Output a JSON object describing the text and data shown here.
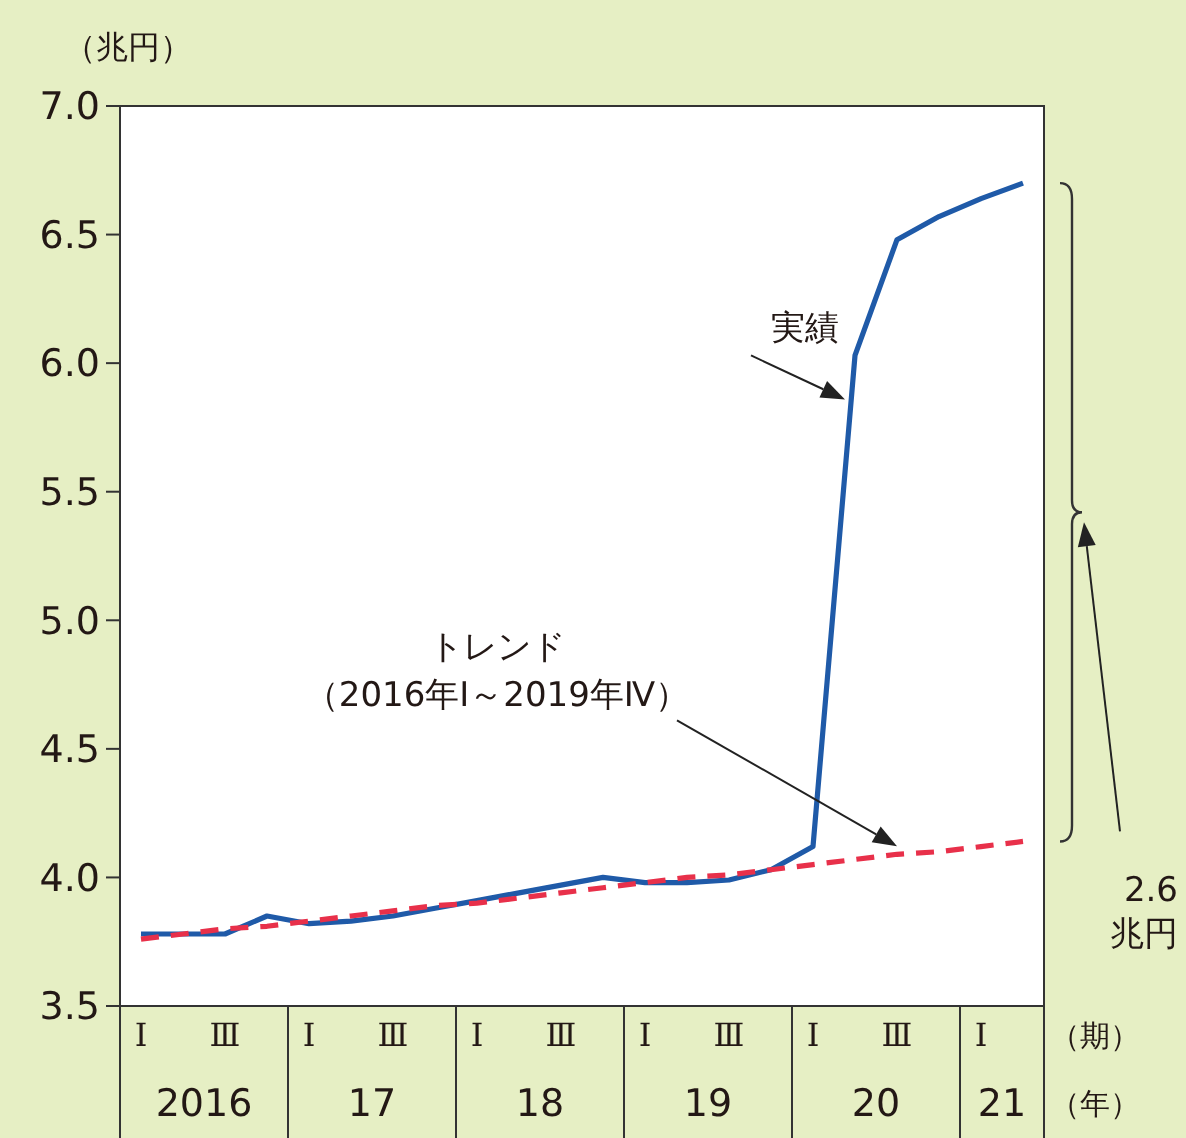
{
  "chart_data": {
    "type": "line",
    "ylabel": "（兆円）",
    "xlabel": "（期）",
    "categories": [
      "Ⅰ",
      null,
      "Ⅲ",
      null,
      "Ⅰ",
      null,
      "Ⅲ",
      null,
      "Ⅰ",
      null,
      "Ⅲ",
      null,
      "Ⅰ",
      null,
      "Ⅲ",
      null,
      "Ⅰ",
      null,
      "Ⅲ",
      null,
      "Ⅰ",
      null
    ],
    "ylim": [
      3.5,
      7.0
    ],
    "yticks": [
      {
        "value": 3.5,
        "label": "3.5"
      },
      {
        "value": 4.0,
        "label": "4.0"
      },
      {
        "value": 4.5,
        "label": "4.5"
      },
      {
        "value": 5.0,
        "label": "5.0"
      },
      {
        "value": 5.5,
        "label": "5.5"
      },
      {
        "value": 6.0,
        "label": "6.0"
      },
      {
        "value": 6.5,
        "label": "6.5"
      },
      {
        "value": 7.0,
        "label": "7.0"
      }
    ],
    "series": [
      {
        "name": "実績",
        "color": "#1f5aa8",
        "line_style": "solid",
        "values": [
          3.78,
          3.78,
          3.78,
          3.85,
          3.82,
          3.83,
          3.85,
          3.88,
          3.91,
          3.94,
          3.97,
          4.0,
          3.98,
          3.98,
          3.99,
          4.03,
          4.12,
          6.03,
          6.48,
          6.57,
          6.64,
          6.7
        ]
      },
      {
        "name": "トレンド（2016年Ⅰ～2019年Ⅳ）",
        "color": "#e8304a",
        "line_style": "dashed",
        "values": [
          3.76,
          3.78,
          3.8,
          3.81,
          3.83,
          3.85,
          3.87,
          3.89,
          3.9,
          3.92,
          3.94,
          3.96,
          3.98,
          4.0,
          4.01,
          4.03,
          4.05,
          4.07,
          4.09,
          4.1,
          4.12,
          4.14
        ]
      }
    ],
    "annotations": [
      "（年）",
      "2016",
      "17",
      "18",
      "19",
      "20",
      "21",
      "2.6\n兆円"
    ]
  }
}
